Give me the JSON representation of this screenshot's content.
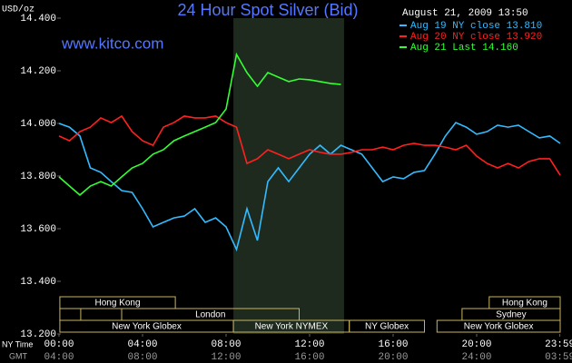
{
  "chart_data": {
    "type": "line",
    "title": "24 Hour Spot Silver (Bid)",
    "unit_label": "USD/oz",
    "site": "www.kitco.com",
    "timestamp": "August 21, 2009 13:50",
    "x_axis_label": "NY Time",
    "x2_axis_label": "GMT",
    "xlim": [
      0,
      24
    ],
    "ylim": [
      13.2,
      14.4
    ],
    "xticks": [
      {
        "value": 0,
        "label": "00:00"
      },
      {
        "value": 4,
        "label": "04:00"
      },
      {
        "value": 8,
        "label": "08:00"
      },
      {
        "value": 12,
        "label": "12:00"
      },
      {
        "value": 16,
        "label": "16:00"
      },
      {
        "value": 20,
        "label": "20:00"
      },
      {
        "value": 23.983,
        "label": "23:59"
      }
    ],
    "x2tick_labels": [
      "04:00",
      "08:00",
      "12:00",
      "16:00",
      "20:00",
      "24:00",
      "03:59"
    ],
    "yticks": [
      {
        "value": 13.2,
        "label": "13.200"
      },
      {
        "value": 13.4,
        "label": "13.400"
      },
      {
        "value": 13.6,
        "label": "13.600"
      },
      {
        "value": 13.8,
        "label": "13.800"
      },
      {
        "value": 14.0,
        "label": "14.000"
      },
      {
        "value": 14.2,
        "label": "14.200"
      },
      {
        "value": 14.4,
        "label": "14.400"
      }
    ],
    "x": [
      0,
      0.5,
      1,
      1.5,
      2,
      2.5,
      3,
      3.5,
      4,
      4.5,
      5,
      5.5,
      6,
      6.5,
      7,
      7.5,
      8,
      8.5,
      9,
      9.5,
      10,
      10.5,
      11,
      11.5,
      12,
      12.5,
      13,
      13.5,
      14,
      14.5,
      15,
      15.5,
      16,
      16.5,
      17,
      17.5,
      18,
      18.5,
      19,
      19.5,
      20,
      20.5,
      21,
      21.5,
      22,
      22.5,
      23,
      23.5,
      24
    ],
    "series": [
      {
        "name": "Aug 19 NY close 13.810",
        "color": "#33bbff",
        "values": [
          14.0,
          13.986,
          13.952,
          13.831,
          13.814,
          13.779,
          13.745,
          13.738,
          13.676,
          13.607,
          13.624,
          13.641,
          13.648,
          13.676,
          13.624,
          13.641,
          13.607,
          13.521,
          13.676,
          13.555,
          13.779,
          13.831,
          13.779,
          13.831,
          13.883,
          13.917,
          13.883,
          13.917,
          13.9,
          13.883,
          13.831,
          13.779,
          13.797,
          13.79,
          13.814,
          13.821,
          13.883,
          13.952,
          14.003,
          13.986,
          13.959,
          13.969,
          13.993,
          13.986,
          13.993,
          13.969,
          13.945,
          13.952,
          13.924
        ]
      },
      {
        "name": "Aug 20 NY close 13.920",
        "color": "#ff2020",
        "values": [
          13.952,
          13.934,
          13.969,
          13.986,
          14.021,
          14.003,
          14.028,
          13.969,
          13.934,
          13.917,
          13.986,
          14.003,
          14.028,
          14.021,
          14.021,
          14.028,
          14.003,
          13.986,
          13.848,
          13.866,
          13.9,
          13.883,
          13.866,
          13.883,
          13.9,
          13.89,
          13.883,
          13.883,
          13.89,
          13.9,
          13.9,
          13.91,
          13.9,
          13.917,
          13.924,
          13.917,
          13.917,
          13.91,
          13.9,
          13.917,
          13.876,
          13.848,
          13.831,
          13.848,
          13.831,
          13.855,
          13.866,
          13.866,
          13.803
        ]
      },
      {
        "name": "Aug 21 Last 14.160",
        "color": "#33ff33",
        "values": [
          13.797,
          13.762,
          13.728,
          13.762,
          13.779,
          13.762,
          13.797,
          13.831,
          13.848,
          13.883,
          13.9,
          13.934,
          13.952,
          13.969,
          13.986,
          14.003,
          14.055,
          14.262,
          14.193,
          14.141,
          14.193,
          14.176,
          14.159,
          14.169,
          14.166,
          14.159,
          14.152,
          14.148,
          null,
          null,
          null,
          null,
          null,
          null,
          null,
          null,
          null,
          null,
          null,
          null,
          null,
          null,
          null,
          null,
          null,
          null,
          null,
          null,
          null
        ]
      }
    ],
    "shade": [
      8.35,
      13.65
    ],
    "shade_color": "#1e2a1e",
    "session_color": "#c8b460",
    "sessions": [
      {
        "label": "Hong Kong",
        "row": 0,
        "start": 0.04,
        "end": 5.57
      },
      {
        "label": "Hong Kong",
        "row": 0,
        "start": 20.6,
        "end": 24
      },
      {
        "label": null,
        "row": 1,
        "start": 0.04,
        "end": 1.04
      },
      {
        "label": "London",
        "row": 1,
        "start": 3.0,
        "end": 11.5
      },
      {
        "label": "Sydney",
        "row": 1,
        "start": 19.3,
        "end": 24
      },
      {
        "label": "New York Globex",
        "row": 2,
        "start": 0.04,
        "end": 8.35
      },
      {
        "label": "New York NYMEX",
        "row": 2,
        "start": 8.35,
        "end": 13.9
      },
      {
        "label": "NY Globex",
        "row": 2,
        "start": 13.9,
        "end": 17.5
      },
      {
        "label": "New York Globex",
        "row": 2,
        "start": 18.1,
        "end": 24
      }
    ]
  }
}
